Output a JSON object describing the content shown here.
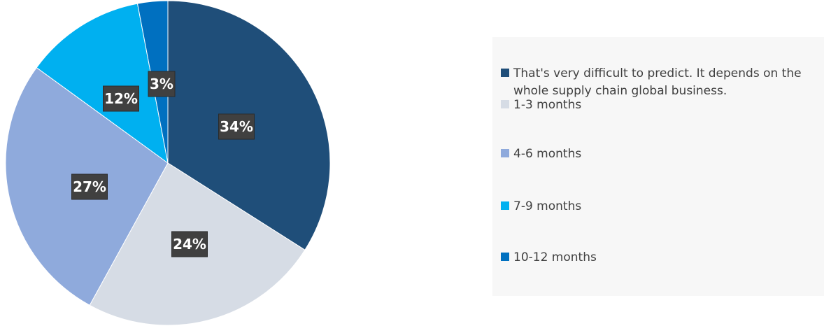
{
  "chart_data": {
    "type": "pie",
    "title": "",
    "categories": [
      "That's very difficult to predict. It depends on the whole supply chain global business.",
      "1-3 months",
      "4-6 months",
      "7-9 months",
      "10-12 months"
    ],
    "values": [
      34,
      24,
      27,
      12,
      3
    ],
    "data_labels": [
      "34%",
      "24%",
      "27%",
      "12%",
      "3%"
    ],
    "colors": [
      "#1f4e79",
      "#d6dce5",
      "#8faadc",
      "#00b0f0",
      "#0070c0"
    ],
    "legend_position": "right",
    "start_angle": "12 o'clock",
    "direction": "clockwise"
  }
}
